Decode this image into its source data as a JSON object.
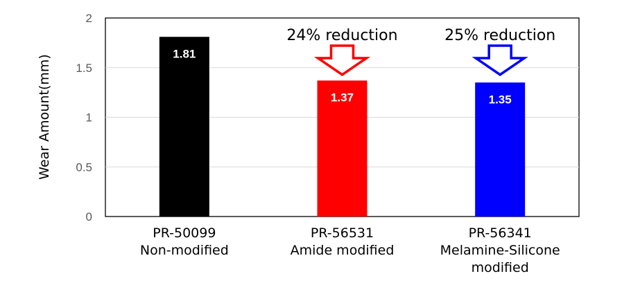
{
  "chart_data": {
    "type": "bar",
    "ylabel": "Wear Amount(mm)",
    "ylim": [
      0,
      2
    ],
    "yticks": [
      "0",
      "0.5",
      "1",
      "1.5",
      "2"
    ],
    "grid": true,
    "legend": "none",
    "categories": [
      [
        "PR-50099",
        "Non-modified"
      ],
      [
        "PR-56531",
        "Amide modified"
      ],
      [
        "PR-56341",
        "Melamine-Silicone",
        "modified"
      ]
    ],
    "values": [
      1.81,
      1.37,
      1.35
    ],
    "data_labels": [
      "1.81",
      "1.37",
      "1.35"
    ],
    "colors": [
      "#000000",
      "#ff0000",
      "#0000ff"
    ],
    "annotations": [
      {
        "text": "24% reduction",
        "category_index": 1,
        "arrow_color": "#ff0000"
      },
      {
        "text": "25% reduction",
        "category_index": 2,
        "arrow_color": "#0000ff"
      }
    ]
  }
}
